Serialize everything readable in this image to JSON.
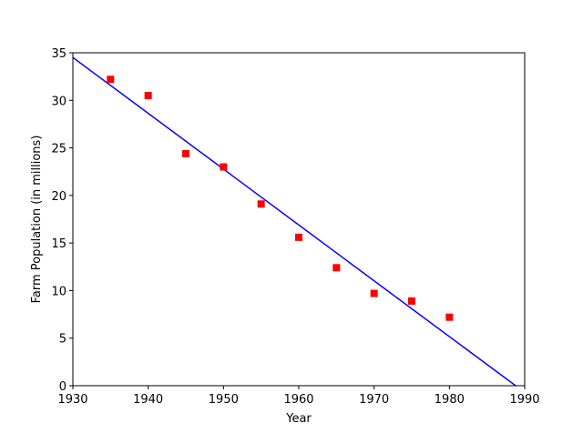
{
  "chart_data": {
    "type": "scatter",
    "xlabel": "Year",
    "ylabel": "Farm Population (in millions)",
    "xlim": [
      1930,
      1990
    ],
    "ylim": [
      0,
      35
    ],
    "x_ticks": [
      1930,
      1940,
      1950,
      1960,
      1970,
      1980,
      1990
    ],
    "y_ticks": [
      0,
      5,
      10,
      15,
      20,
      25,
      30,
      35
    ],
    "grid": false,
    "series": [
      {
        "type": "scatter",
        "marker": "square",
        "color": "#ff0000",
        "x": [
          1935,
          1940,
          1945,
          1950,
          1955,
          1960,
          1965,
          1970,
          1975,
          1980
        ],
        "y": [
          32.2,
          30.5,
          24.4,
          23.0,
          19.1,
          15.6,
          12.4,
          9.7,
          8.9,
          7.2
        ]
      },
      {
        "type": "line",
        "color": "#0000ff",
        "x": [
          1930,
          1988.8
        ],
        "y": [
          34.5,
          0
        ]
      }
    ]
  }
}
